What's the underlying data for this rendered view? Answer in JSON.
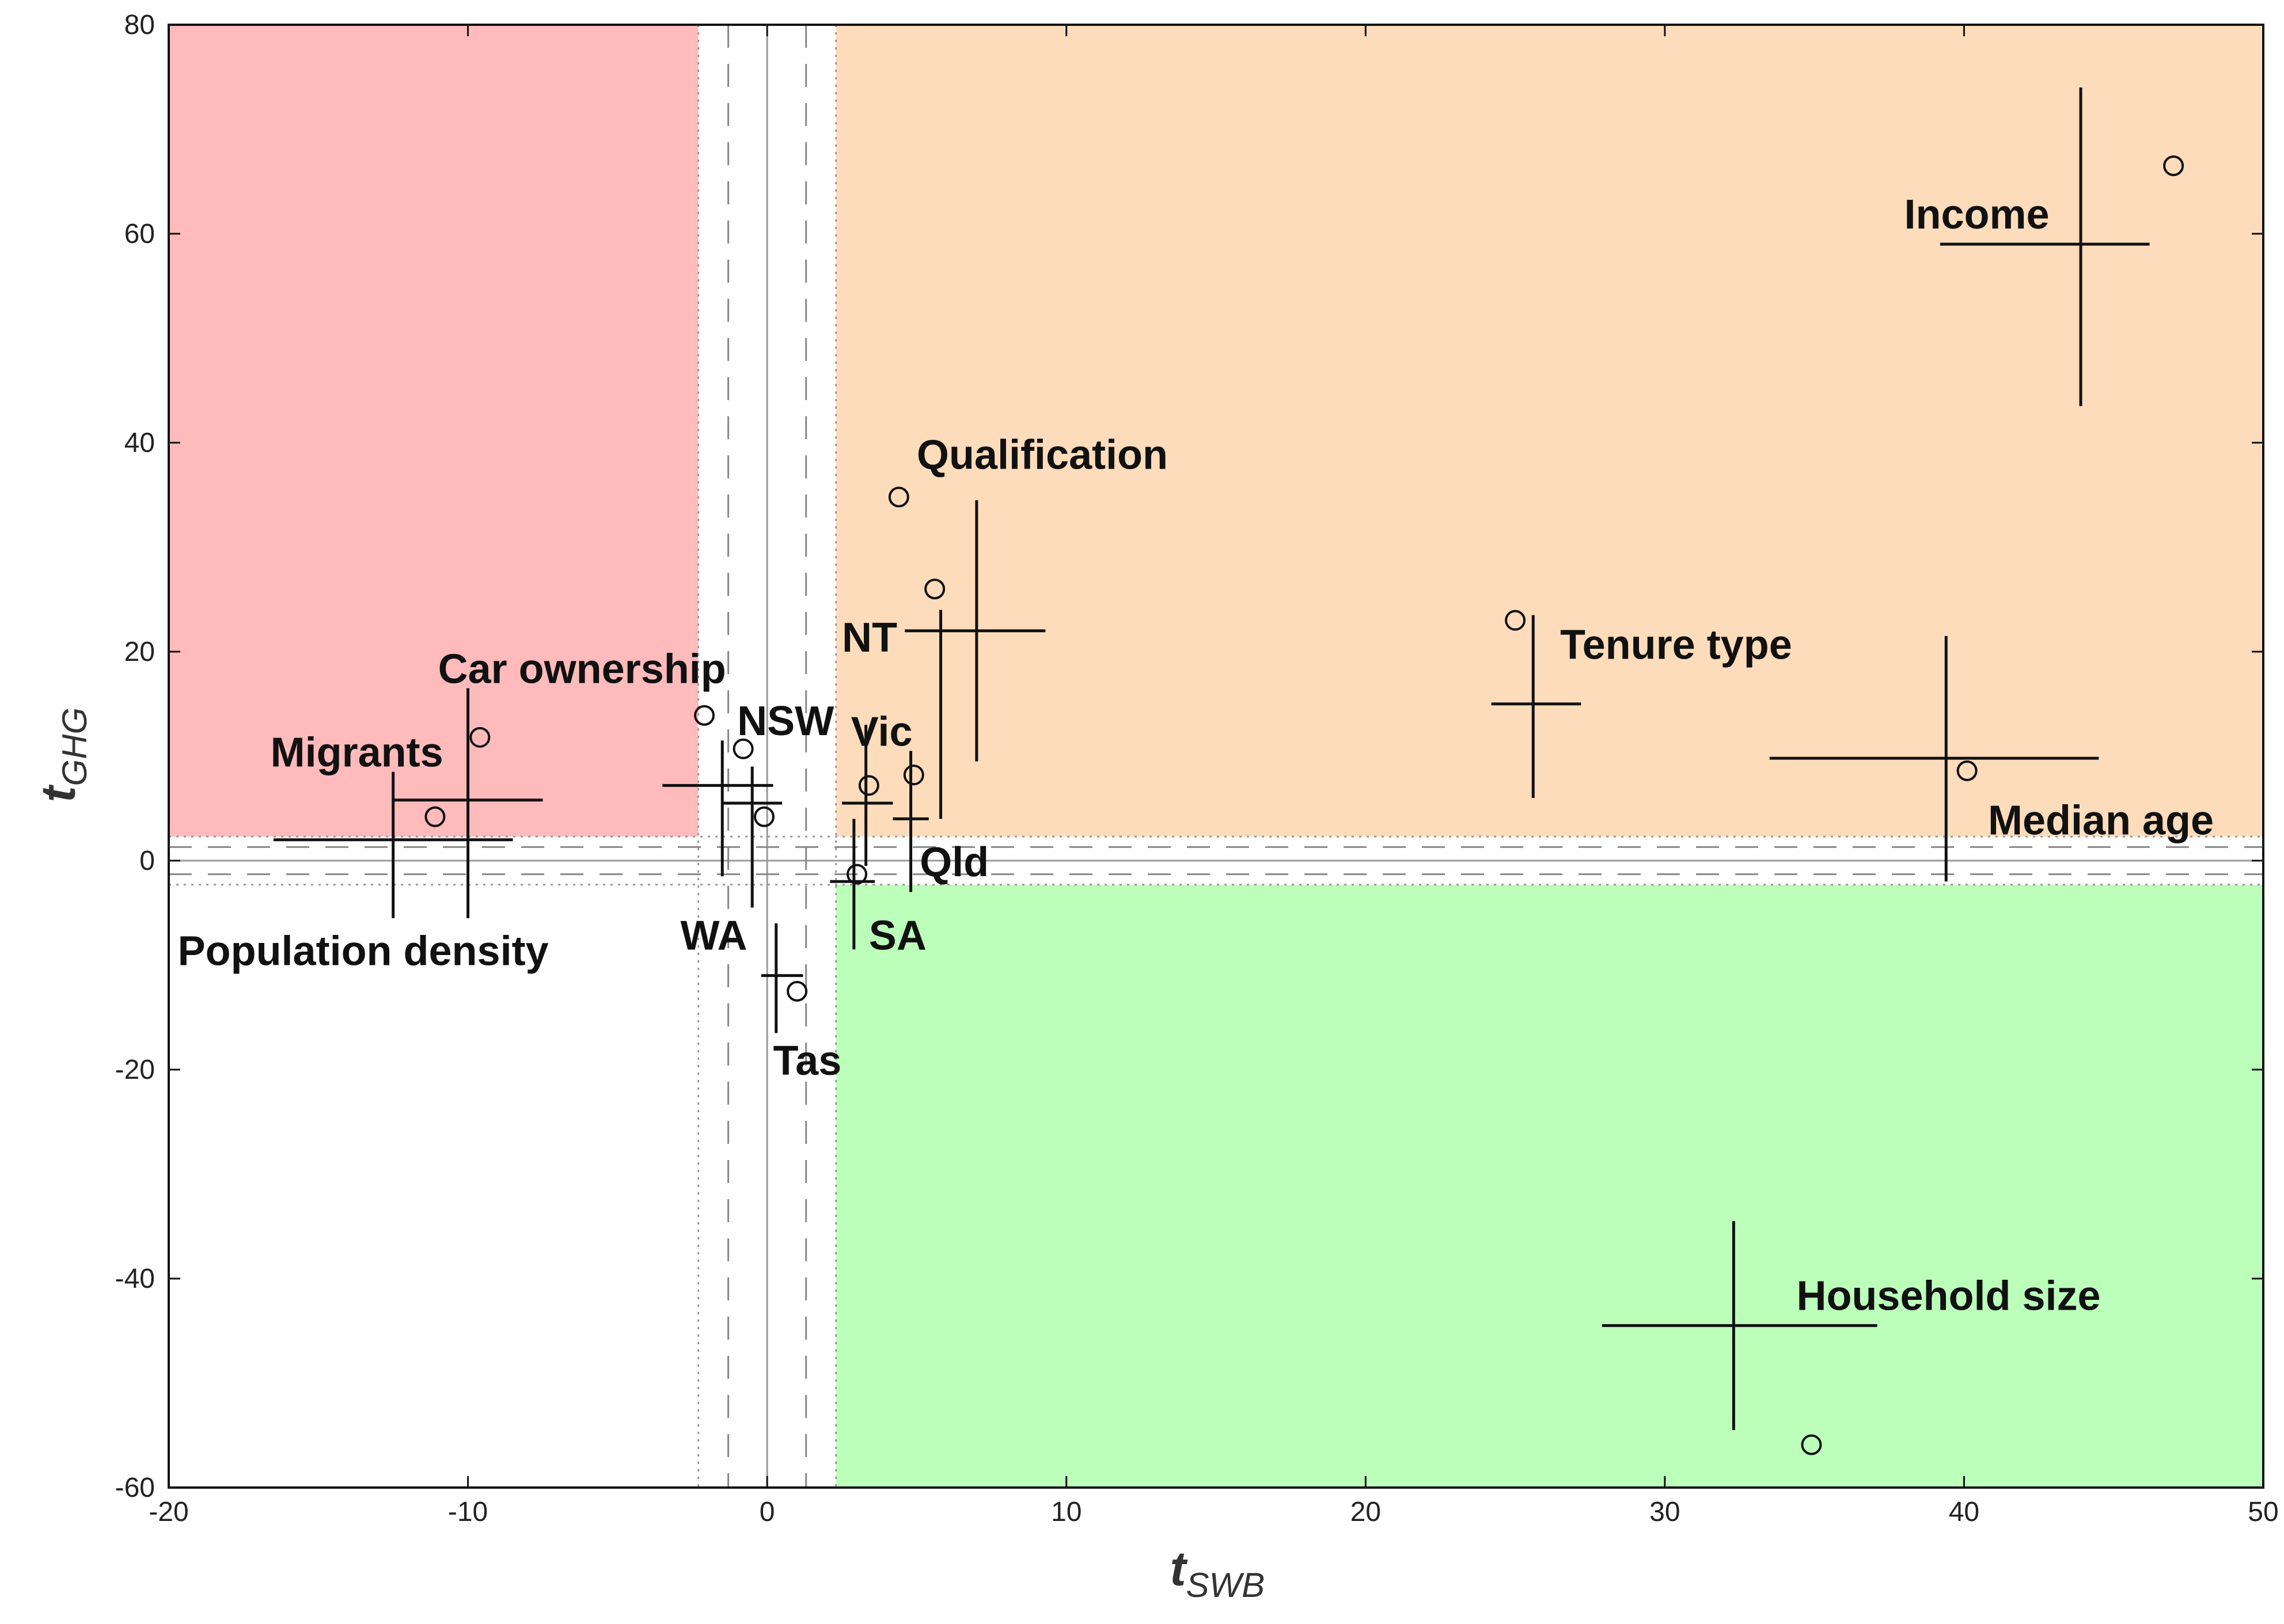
{
  "chart_data": {
    "type": "scatter",
    "title": "",
    "xlabel": {
      "main": "t",
      "sub": "SWB"
    },
    "ylabel": {
      "main": "t",
      "sub": "GHG"
    },
    "xlim": [
      -20,
      50
    ],
    "ylim": [
      -60,
      80
    ],
    "xticks": [
      -20,
      -10,
      0,
      10,
      20,
      30,
      40,
      50
    ],
    "yticks": [
      -60,
      -40,
      -20,
      0,
      20,
      40,
      60,
      80
    ],
    "grid": false,
    "regions": [
      {
        "name": "red",
        "color": "#ffbbbb",
        "x": [
          -20,
          -2.3
        ],
        "y": [
          2.3,
          80
        ]
      },
      {
        "name": "orange",
        "color": "#fddcbb",
        "x": [
          2.3,
          50
        ],
        "y": [
          2.3,
          80
        ]
      },
      {
        "name": "green",
        "color": "#bbffbb",
        "x": [
          2.3,
          50
        ],
        "y": [
          -60,
          -2.3
        ]
      }
    ],
    "reference_lines": {
      "solid": 0,
      "dashed": [
        -1.3,
        1.3
      ],
      "dotted": [
        -2.3,
        2.3
      ]
    },
    "points": [
      {
        "label": "Income",
        "x": 47.0,
        "y": 66.5
      },
      {
        "label": "Qualification",
        "x": 4.4,
        "y": 34.8
      },
      {
        "label": "NT",
        "x": 5.6,
        "y": 26.0
      },
      {
        "label": "Tenure type",
        "x": 25.0,
        "y": 23.0
      },
      {
        "label": "Car ownership",
        "x": -9.6,
        "y": 11.8
      },
      {
        "label": "Migrants",
        "x": -11.1,
        "y": 4.2
      },
      {
        "label": "NSW",
        "x": -0.8,
        "y": 10.7
      },
      {
        "label": "Vic",
        "x": 3.4,
        "y": 7.2
      },
      {
        "label": "Qld",
        "x": 4.9,
        "y": 8.2
      },
      {
        "label": "SA",
        "x": 3.0,
        "y": -1.3
      },
      {
        "label": "WA",
        "x": -0.1,
        "y": 4.2
      },
      {
        "label": "Tas",
        "x": 1.0,
        "y": -12.5
      },
      {
        "label": "Median age",
        "x": 40.1,
        "y": 8.6
      },
      {
        "label": "Household size",
        "x": 34.9,
        "y": -55.9
      },
      {
        "label": "Population density",
        "x": -2.1,
        "y": 13.9
      }
    ],
    "crosses": [
      {
        "label": "Income",
        "x": [
          39.2,
          46.2
        ],
        "y": [
          43.5,
          74.0
        ],
        "cx": 43.9,
        "cy": 59.0
      },
      {
        "label": "Qualification",
        "x": [
          4.6,
          9.3
        ],
        "y": [
          9.5,
          34.5
        ],
        "cx": 7.0,
        "cy": 22.0
      },
      {
        "label": "NT",
        "x": [
          5.8,
          5.8
        ],
        "y": [
          4.0,
          24.0
        ],
        "cx": 5.8,
        "cy": 15.0
      },
      {
        "label": "Tenure type",
        "x": [
          24.2,
          27.2
        ],
        "y": [
          6.0,
          23.5
        ],
        "cx": 25.6,
        "cy": 15.0
      },
      {
        "label": "Median age",
        "x": [
          33.5,
          44.5
        ],
        "y": [
          -2.0,
          21.5
        ],
        "cx": 39.4,
        "cy": 9.8
      },
      {
        "label": "Household size",
        "x": [
          27.9,
          37.1
        ],
        "y": [
          -54.5,
          -34.5
        ],
        "cx": 32.3,
        "cy": -44.5
      },
      {
        "label": "Car ownership",
        "x": [
          -12.5,
          -7.5
        ],
        "y": [
          -5.5,
          16.5
        ],
        "cx": -10.0,
        "cy": 5.8
      },
      {
        "label": "Population density",
        "x": [
          -16.5,
          -8.5
        ],
        "y": [
          -5.5,
          8.5
        ],
        "cx": -12.5,
        "cy": 2.0
      },
      {
        "label": "NSW",
        "x": [
          -3.5,
          0.2
        ],
        "y": [
          -1.5,
          11.5
        ],
        "cx": -1.5,
        "cy": 7.2
      },
      {
        "label": "WA",
        "x": [
          -1.5,
          0.5
        ],
        "y": [
          -4.5,
          9.0
        ],
        "cx": -0.5,
        "cy": 5.5
      },
      {
        "label": "Vic",
        "x": [
          2.5,
          4.2
        ],
        "y": [
          -0.5,
          13.0
        ],
        "cx": 3.3,
        "cy": 5.5
      },
      {
        "label": "Qld",
        "x": [
          4.2,
          5.4
        ],
        "y": [
          -3.0,
          10.5
        ],
        "cx": 4.8,
        "cy": 4.0
      },
      {
        "label": "SA",
        "x": [
          2.1,
          3.6
        ],
        "y": [
          -8.5,
          4.0
        ],
        "cx": 2.9,
        "cy": -2.0
      },
      {
        "label": "Tas",
        "x": [
          -0.2,
          1.2
        ],
        "y": [
          -16.5,
          -6.0
        ],
        "cx": 0.3,
        "cy": -11.0
      }
    ],
    "labels": [
      {
        "text": "Income",
        "x": 38.0,
        "y": 60.5
      },
      {
        "text": "Qualification",
        "x": 5.0,
        "y": 37.5
      },
      {
        "text": "NT",
        "x": 2.5,
        "y": 20.0
      },
      {
        "text": "Tenure type",
        "x": 26.5,
        "y": 19.3
      },
      {
        "text": "Car ownership",
        "x": -11.0,
        "y": 17.0
      },
      {
        "text": "Migrants",
        "x": -16.6,
        "y": 9.0
      },
      {
        "text": "NSW",
        "x": -1.0,
        "y": 12.0
      },
      {
        "text": "Vic",
        "x": 2.8,
        "y": 11.0
      },
      {
        "text": "Qld",
        "x": 5.1,
        "y": -1.5
      },
      {
        "text": "SA",
        "x": 3.4,
        "y": -8.5
      },
      {
        "text": "WA",
        "x": -2.9,
        "y": -8.5
      },
      {
        "text": "Tas",
        "x": 0.2,
        "y": -20.5
      },
      {
        "text": "Median age",
        "x": 40.8,
        "y": 2.5
      },
      {
        "text": "Household size",
        "x": 34.4,
        "y": -43.0
      },
      {
        "text": "Population density",
        "x": -19.7,
        "y": -10.0
      }
    ]
  }
}
